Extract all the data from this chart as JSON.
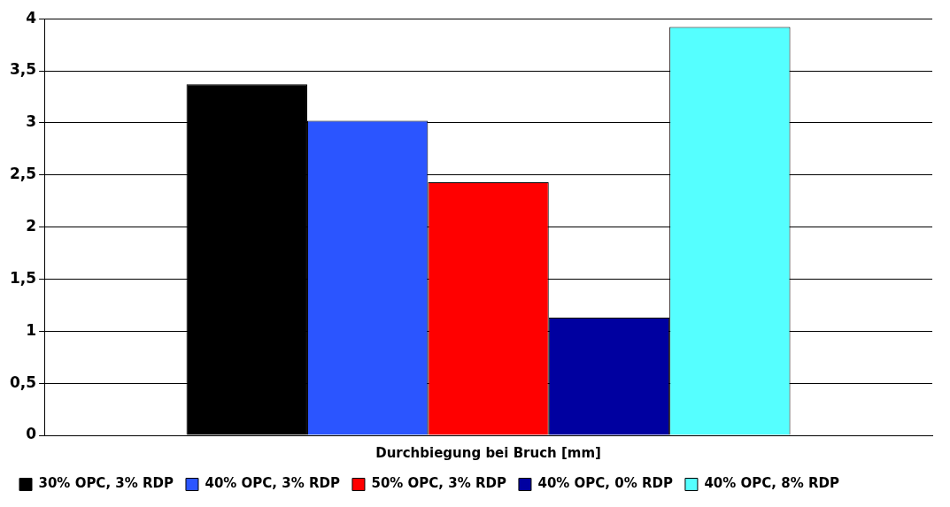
{
  "chart_data": {
    "type": "bar",
    "xlabel": "Durchbiegung bei Bruch [mm]",
    "categories": [
      null
    ],
    "series": [
      {
        "name": "30% OPC, 3% RDP",
        "color": "#000000",
        "values": [
          3.37
        ]
      },
      {
        "name": "40% OPC, 3% RDP",
        "color": "#2b55ff",
        "values": [
          3.02
        ]
      },
      {
        "name": "50% OPC, 3% RDP",
        "color": "#ff0000",
        "values": [
          2.43
        ]
      },
      {
        "name": "40% OPC, 0% RDP",
        "color": "#0000a0",
        "values": [
          1.13
        ]
      },
      {
        "name": "40% OPC, 8% RDP",
        "color": "#55ffff",
        "values": [
          3.92
        ]
      }
    ],
    "ylim": [
      0,
      4
    ],
    "yticks": [
      {
        "value": 0,
        "label": "0"
      },
      {
        "value": 0.5,
        "label": "0,5"
      },
      {
        "value": 1,
        "label": "1"
      },
      {
        "value": 1.5,
        "label": "1,5"
      },
      {
        "value": 2,
        "label": "2"
      },
      {
        "value": 2.5,
        "label": "2,5"
      },
      {
        "value": 3,
        "label": "3"
      },
      {
        "value": 3.5,
        "label": "3,5"
      },
      {
        "value": 4,
        "label": "4"
      }
    ],
    "grid": "y",
    "legend": "bottom"
  }
}
